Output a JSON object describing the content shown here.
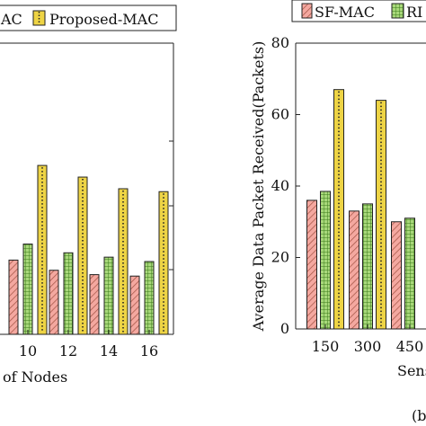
{
  "chart_data": [
    {
      "type": "bar",
      "xlabel": "of Nodes",
      "ylabel": "",
      "categories": [
        "10",
        "12",
        "14",
        "16"
      ],
      "series": [
        {
          "name": "",
          "color": "#f4a8a0",
          "pattern": "diagonal-hatch",
          "values": [
            25.5,
            22,
            20.5,
            20
          ]
        },
        {
          "name": "",
          "color": "#a8d87a",
          "pattern": "grid",
          "values": [
            31,
            28,
            26.5,
            25
          ]
        },
        {
          "name": "Proposed-MAC",
          "color": "#eed445",
          "pattern": "dots",
          "values": [
            58,
            54,
            50,
            49
          ]
        }
      ],
      "legend": [
        "AC",
        "Proposed-MAC"
      ],
      "legend_position": "top",
      "ylim": [
        0,
        100
      ],
      "grid": false
    },
    {
      "type": "bar",
      "ylabel": "Average Data Packet Received(Packets)",
      "xlabel": "Sens",
      "categories": [
        "150",
        "300",
        "450"
      ],
      "yticks": [
        "0",
        "20",
        "40",
        "60",
        "80"
      ],
      "ylim": [
        0,
        80
      ],
      "series": [
        {
          "name": "SF-MAC",
          "color": "#f4a8a0",
          "pattern": "diagonal-hatch",
          "values": [
            36,
            33,
            30
          ]
        },
        {
          "name": "RI",
          "color": "#a8d87a",
          "pattern": "grid",
          "values": [
            38.5,
            35,
            31
          ]
        },
        {
          "name": "",
          "color": "#eed445",
          "pattern": "dots",
          "values": [
            67,
            64,
            0
          ]
        }
      ],
      "legend": [
        "SF-MAC",
        "RI"
      ],
      "legend_position": "top",
      "grid": false
    }
  ],
  "caption": "(b"
}
